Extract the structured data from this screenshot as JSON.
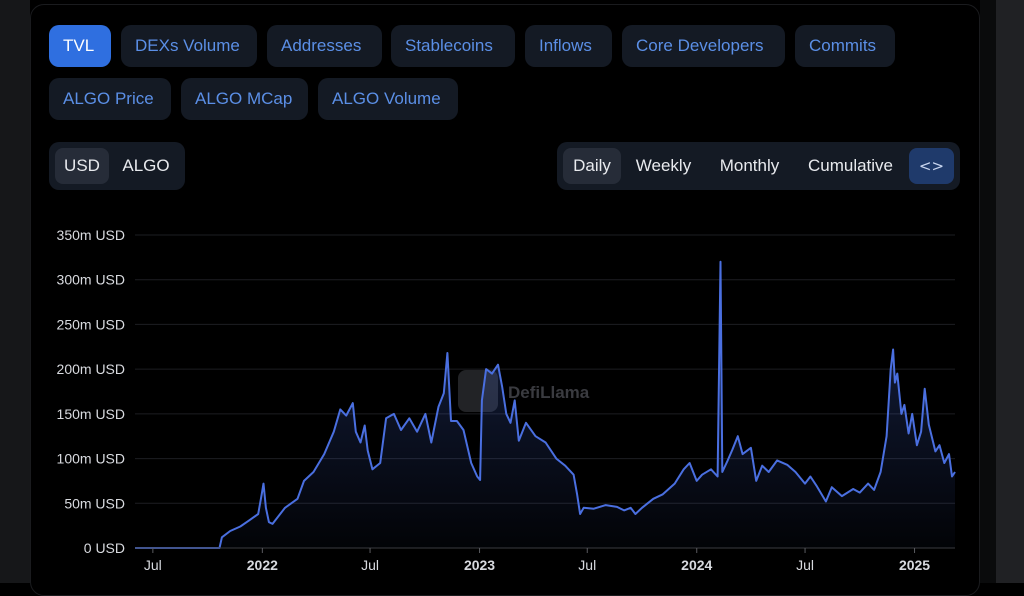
{
  "tabs": [
    "TVL",
    "DEXs Volume",
    "Addresses",
    "Stablecoins",
    "Inflows",
    "Core Developers",
    "Commits",
    "ALGO Price",
    "ALGO MCap",
    "ALGO Volume"
  ],
  "active_tab": "TVL",
  "currency_toggle": {
    "options": [
      "USD",
      "ALGO"
    ],
    "selected": "USD"
  },
  "period_toggle": {
    "options": [
      "Daily",
      "Weekly",
      "Monthly",
      "Cumulative"
    ],
    "selected": "Daily",
    "embed_icon": "code-brackets-icon"
  },
  "watermark": "DefiLlama",
  "colors": {
    "line": "#4a6fe0",
    "active_tab": "#2f6fe0",
    "tab_text": "#5b8fe6"
  },
  "chart_data": {
    "type": "area",
    "title": "",
    "xlabel": "",
    "ylabel": "",
    "y_unit": "USD",
    "ylim": [
      0,
      350000000
    ],
    "y_ticks": [
      "0 USD",
      "50m USD",
      "100m USD",
      "150m USD",
      "200m USD",
      "250m USD",
      "300m USD",
      "350m USD"
    ],
    "x_ticks": [
      {
        "date": "2021-07-01",
        "label": "Jul",
        "bold": false
      },
      {
        "date": "2022-01-01",
        "label": "2022",
        "bold": true
      },
      {
        "date": "2022-07-01",
        "label": "Jul",
        "bold": false
      },
      {
        "date": "2023-01-01",
        "label": "2023",
        "bold": true
      },
      {
        "date": "2023-07-01",
        "label": "Jul",
        "bold": false
      },
      {
        "date": "2024-01-01",
        "label": "2024",
        "bold": true
      },
      {
        "date": "2024-07-01",
        "label": "Jul",
        "bold": false
      },
      {
        "date": "2025-01-01",
        "label": "2025",
        "bold": true
      }
    ],
    "grid": true,
    "legend": "none",
    "series": [
      {
        "points": [
          [
            "2021-06-01",
            0
          ],
          [
            "2021-08-01",
            0
          ],
          [
            "2021-10-01",
            0
          ],
          [
            "2021-10-21",
            0
          ],
          [
            "2021-10-25",
            12
          ],
          [
            "2021-11-08",
            19
          ],
          [
            "2021-11-25",
            24
          ],
          [
            "2021-12-10",
            31
          ],
          [
            "2021-12-25",
            38
          ],
          [
            "2021-12-31",
            60
          ],
          [
            "2022-01-03",
            72
          ],
          [
            "2022-01-07",
            45
          ],
          [
            "2022-01-12",
            29
          ],
          [
            "2022-01-18",
            27
          ],
          [
            "2022-02-08",
            45
          ],
          [
            "2022-03-01",
            55
          ],
          [
            "2022-03-12",
            75
          ],
          [
            "2022-03-28",
            85
          ],
          [
            "2022-04-15",
            105
          ],
          [
            "2022-05-01",
            130
          ],
          [
            "2022-05-12",
            155
          ],
          [
            "2022-05-22",
            148
          ],
          [
            "2022-06-02",
            162
          ],
          [
            "2022-06-07",
            130
          ],
          [
            "2022-06-15",
            118
          ],
          [
            "2022-06-22",
            137
          ],
          [
            "2022-06-27",
            109
          ],
          [
            "2022-07-05",
            88
          ],
          [
            "2022-07-18",
            95
          ],
          [
            "2022-07-28",
            145
          ],
          [
            "2022-08-10",
            150
          ],
          [
            "2022-08-22",
            132
          ],
          [
            "2022-09-05",
            145
          ],
          [
            "2022-09-18",
            130
          ],
          [
            "2022-10-02",
            150
          ],
          [
            "2022-10-12",
            118
          ],
          [
            "2022-10-24",
            158
          ],
          [
            "2022-11-02",
            173
          ],
          [
            "2022-11-08",
            218
          ],
          [
            "2022-11-14",
            142
          ],
          [
            "2022-11-24",
            142
          ],
          [
            "2022-12-05",
            132
          ],
          [
            "2022-12-18",
            95
          ],
          [
            "2022-12-28",
            80
          ],
          [
            "2023-01-02",
            76
          ],
          [
            "2023-01-05",
            165
          ],
          [
            "2023-01-12",
            200
          ],
          [
            "2023-01-22",
            195
          ],
          [
            "2023-02-01",
            205
          ],
          [
            "2023-02-08",
            180
          ],
          [
            "2023-02-15",
            150
          ],
          [
            "2023-02-22",
            140
          ],
          [
            "2023-03-01",
            165
          ],
          [
            "2023-03-08",
            120
          ],
          [
            "2023-03-20",
            140
          ],
          [
            "2023-04-05",
            125
          ],
          [
            "2023-04-22",
            118
          ],
          [
            "2023-05-10",
            100
          ],
          [
            "2023-05-25",
            92
          ],
          [
            "2023-06-08",
            82
          ],
          [
            "2023-06-14",
            60
          ],
          [
            "2023-06-19",
            38
          ],
          [
            "2023-06-25",
            45
          ],
          [
            "2023-07-12",
            44
          ],
          [
            "2023-08-01",
            48
          ],
          [
            "2023-08-20",
            46
          ],
          [
            "2023-09-01",
            42
          ],
          [
            "2023-09-12",
            45
          ],
          [
            "2023-09-20",
            38
          ],
          [
            "2023-10-01",
            45
          ],
          [
            "2023-10-20",
            55
          ],
          [
            "2023-11-05",
            60
          ],
          [
            "2023-11-25",
            72
          ],
          [
            "2023-12-10",
            88
          ],
          [
            "2023-12-20",
            95
          ],
          [
            "2024-01-01",
            75
          ],
          [
            "2024-01-10",
            82
          ],
          [
            "2024-01-25",
            88
          ],
          [
            "2024-02-05",
            80
          ],
          [
            "2024-02-10",
            320
          ],
          [
            "2024-02-13",
            85
          ],
          [
            "2024-02-22",
            98
          ],
          [
            "2024-03-01",
            110
          ],
          [
            "2024-03-10",
            125
          ],
          [
            "2024-03-18",
            105
          ],
          [
            "2024-04-01",
            112
          ],
          [
            "2024-04-10",
            75
          ],
          [
            "2024-04-20",
            92
          ],
          [
            "2024-05-01",
            85
          ],
          [
            "2024-05-15",
            98
          ],
          [
            "2024-06-01",
            93
          ],
          [
            "2024-06-15",
            85
          ],
          [
            "2024-07-01",
            72
          ],
          [
            "2024-07-10",
            80
          ],
          [
            "2024-07-20",
            70
          ],
          [
            "2024-08-05",
            52
          ],
          [
            "2024-08-15",
            68
          ],
          [
            "2024-09-01",
            58
          ],
          [
            "2024-09-20",
            66
          ],
          [
            "2024-10-01",
            62
          ],
          [
            "2024-10-15",
            72
          ],
          [
            "2024-10-25",
            65
          ],
          [
            "2024-11-05",
            85
          ],
          [
            "2024-11-15",
            125
          ],
          [
            "2024-11-22",
            200
          ],
          [
            "2024-11-26",
            222
          ],
          [
            "2024-11-29",
            185
          ],
          [
            "2024-12-03",
            195
          ],
          [
            "2024-12-10",
            150
          ],
          [
            "2024-12-15",
            160
          ],
          [
            "2024-12-22",
            128
          ],
          [
            "2024-12-28",
            150
          ],
          [
            "2025-01-05",
            115
          ],
          [
            "2025-01-12",
            130
          ],
          [
            "2025-01-18",
            178
          ],
          [
            "2025-01-25",
            138
          ],
          [
            "2025-02-05",
            108
          ],
          [
            "2025-02-12",
            115
          ],
          [
            "2025-02-20",
            95
          ],
          [
            "2025-02-28",
            105
          ],
          [
            "2025-03-05",
            80
          ],
          [
            "2025-03-10",
            85
          ]
        ]
      }
    ]
  }
}
